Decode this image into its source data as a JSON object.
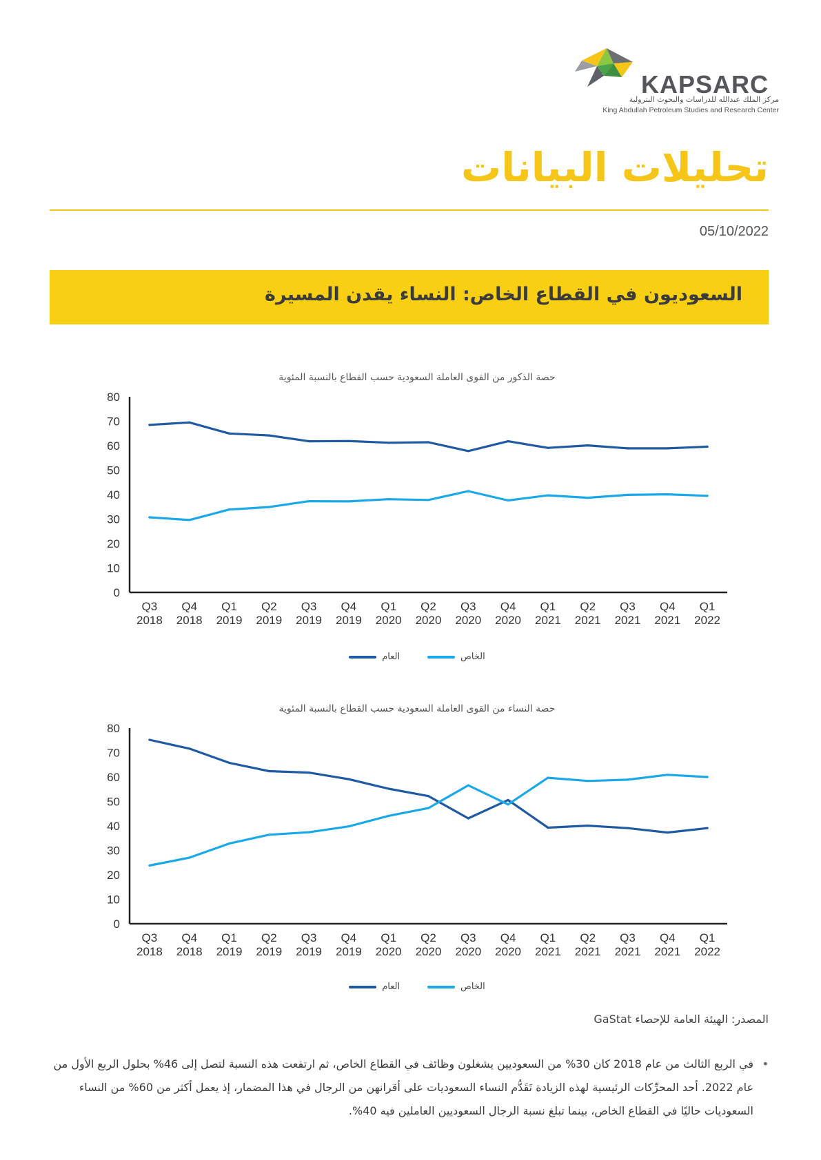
{
  "header": {
    "logo_text": "KAPSARC",
    "logo_arabic": "مركز الملك عبدالله للدراسات والبحوث البترولية",
    "logo_english": "King Abdullah Petroleum Studies and Research Center",
    "page_title": "تحليلات البيانات",
    "date": "05/10/2022"
  },
  "banner": {
    "title": "السعوديون في القطاع الخاص: النساء يقدن المسيرة"
  },
  "colors": {
    "accent": "#f5c518",
    "public": "#1f5aa3",
    "private": "#1aa8e8"
  },
  "chart_data": [
    {
      "type": "line",
      "title": "حصة الذكور من القوى العاملة السعودية حسب القطاع بالنسبة المئوية",
      "categories": [
        [
          "Q3",
          "2018"
        ],
        [
          "Q4",
          "2018"
        ],
        [
          "Q1",
          "2019"
        ],
        [
          "Q2",
          "2019"
        ],
        [
          "Q3",
          "2019"
        ],
        [
          "Q4",
          "2019"
        ],
        [
          "Q1",
          "2020"
        ],
        [
          "Q2",
          "2020"
        ],
        [
          "Q3",
          "2020"
        ],
        [
          "Q4",
          "2020"
        ],
        [
          "Q1",
          "2021"
        ],
        [
          "Q2",
          "2021"
        ],
        [
          "Q3",
          "2021"
        ],
        [
          "Q4",
          "2021"
        ],
        [
          "Q1",
          "2022"
        ]
      ],
      "ylim": [
        0,
        80
      ],
      "yticks": [
        0,
        10,
        20,
        30,
        40,
        50,
        60,
        70,
        80
      ],
      "grid": false,
      "legend_position": "bottom",
      "series": [
        {
          "name": "العام",
          "color": "#1f5aa3",
          "values": [
            68.5,
            69.5,
            65,
            64.2,
            61.8,
            61.9,
            61.2,
            61.4,
            57.8,
            61.8,
            59.1,
            60.1,
            58.9,
            58.9,
            59.6
          ]
        },
        {
          "name": "الخاص",
          "color": "#1aa8e8",
          "values": [
            30.7,
            29.6,
            33.9,
            34.9,
            37.3,
            37.2,
            38.1,
            37.8,
            41.4,
            37.6,
            39.7,
            38.7,
            39.9,
            40.1,
            39.5
          ]
        }
      ]
    },
    {
      "type": "line",
      "title": "حصة النساء من القوى العاملة السعودية حسب القطاع بالنسبة المئوية",
      "categories": [
        [
          "Q3",
          "2018"
        ],
        [
          "Q4",
          "2018"
        ],
        [
          "Q1",
          "2019"
        ],
        [
          "Q2",
          "2019"
        ],
        [
          "Q3",
          "2019"
        ],
        [
          "Q4",
          "2019"
        ],
        [
          "Q1",
          "2020"
        ],
        [
          "Q2",
          "2020"
        ],
        [
          "Q3",
          "2020"
        ],
        [
          "Q4",
          "2020"
        ],
        [
          "Q1",
          "2021"
        ],
        [
          "Q2",
          "2021"
        ],
        [
          "Q3",
          "2021"
        ],
        [
          "Q4",
          "2021"
        ],
        [
          "Q1",
          "2022"
        ]
      ],
      "ylim": [
        0,
        80
      ],
      "yticks": [
        0,
        10,
        20,
        30,
        40,
        50,
        60,
        70,
        80
      ],
      "grid": false,
      "legend_position": "bottom",
      "series": [
        {
          "name": "العام",
          "color": "#1f5aa3",
          "values": [
            75.2,
            71.6,
            65.8,
            62.4,
            61.8,
            59.1,
            55.2,
            52.2,
            43.1,
            50.6,
            39.3,
            40.1,
            39.1,
            37.3,
            39.1
          ]
        },
        {
          "name": "الخاص",
          "color": "#1aa8e8",
          "values": [
            23.8,
            27.0,
            32.8,
            36.4,
            37.4,
            39.8,
            44.1,
            47.3,
            56.6,
            48.8,
            59.7,
            58.4,
            58.9,
            60.9,
            60.0
          ]
        }
      ]
    }
  ],
  "legend": {
    "private": "الخاص",
    "public": "العام"
  },
  "source": "المصدر: الهيئة العامة للإحصاء GaStat",
  "bullet": "•",
  "paragraph": "في الربع الثالث من عام 2018 كان 30% من السعوديين يشغلون وظائف في القطاع الخاص، ثم ارتفعت هذه النسبة لتصل إلى 46% بحلول الربع الأول من عام 2022. أحد المحرِّكات الرئيسية لهذه الزيادة تَقَدُّم النساء السعوديات على أقرانهن من الرجال في هذا المضمار، إذ يعمل أكثر من 60% من النساء السعوديات حاليًا في القطاع الخاص، بينما تبلغ نسبة الرجال السعوديين العاملين فيه 40%."
}
